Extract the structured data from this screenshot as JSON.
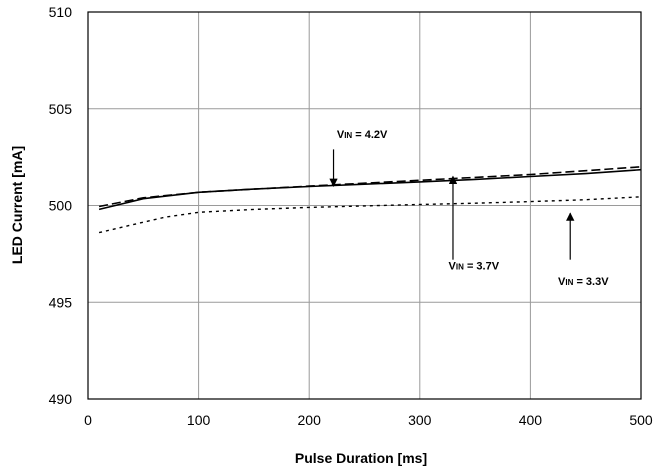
{
  "chart_data": {
    "type": "line",
    "title": "",
    "xlabel": "Pulse Duration [ms]",
    "ylabel": "LED Current [mA]",
    "xlim": [
      0,
      500
    ],
    "ylim": [
      490,
      510
    ],
    "xticks": [
      0,
      100,
      200,
      300,
      400,
      500
    ],
    "yticks": [
      490,
      495,
      500,
      505,
      510
    ],
    "grid": true,
    "series": [
      {
        "name": "",
        "style": "dashed",
        "x": [
          10,
          50,
          100,
          150,
          200,
          250,
          300,
          350,
          400,
          450,
          500
        ],
        "values": [
          499.95,
          500.4,
          500.68,
          500.85,
          501.0,
          501.15,
          501.3,
          501.45,
          501.6,
          501.8,
          502.0
        ]
      },
      {
        "name": "",
        "style": "solid",
        "x": [
          10,
          50,
          100,
          150,
          200,
          250,
          300,
          350,
          400,
          450,
          500
        ],
        "values": [
          499.8,
          500.35,
          500.68,
          500.85,
          500.98,
          501.1,
          501.22,
          501.35,
          501.5,
          501.65,
          501.85
        ]
      },
      {
        "name": "",
        "style": "dotted",
        "x": [
          10,
          40,
          70,
          100,
          150,
          200,
          250,
          300,
          350,
          400,
          450,
          500
        ],
        "values": [
          498.6,
          499.0,
          499.4,
          499.65,
          499.8,
          499.9,
          499.98,
          500.05,
          500.12,
          500.2,
          500.3,
          500.45
        ]
      }
    ],
    "annotations": [
      {
        "label": "VIN = 4.2V",
        "prefix": "V",
        "sub": "IN",
        "rest": " = 4.2V",
        "arrow_x": 222,
        "arrow_from_y": 502.9,
        "arrow_to_y": 501.0,
        "text_x": 225,
        "text_y": 503.5
      },
      {
        "label": "VIN = 3.7V",
        "prefix": "V",
        "sub": "IN",
        "rest": " = 3.7V",
        "arrow_x": 330,
        "arrow_from_y": 497.2,
        "arrow_to_y": 501.5,
        "text_x": 326,
        "text_y": 496.7
      },
      {
        "label": "VIN = 3.3V",
        "prefix": "V",
        "sub": "IN",
        "rest": " = 3.3V",
        "arrow_x": 436,
        "arrow_from_y": 497.2,
        "arrow_to_y": 499.6,
        "text_x": 425,
        "text_y": 495.9
      }
    ]
  }
}
